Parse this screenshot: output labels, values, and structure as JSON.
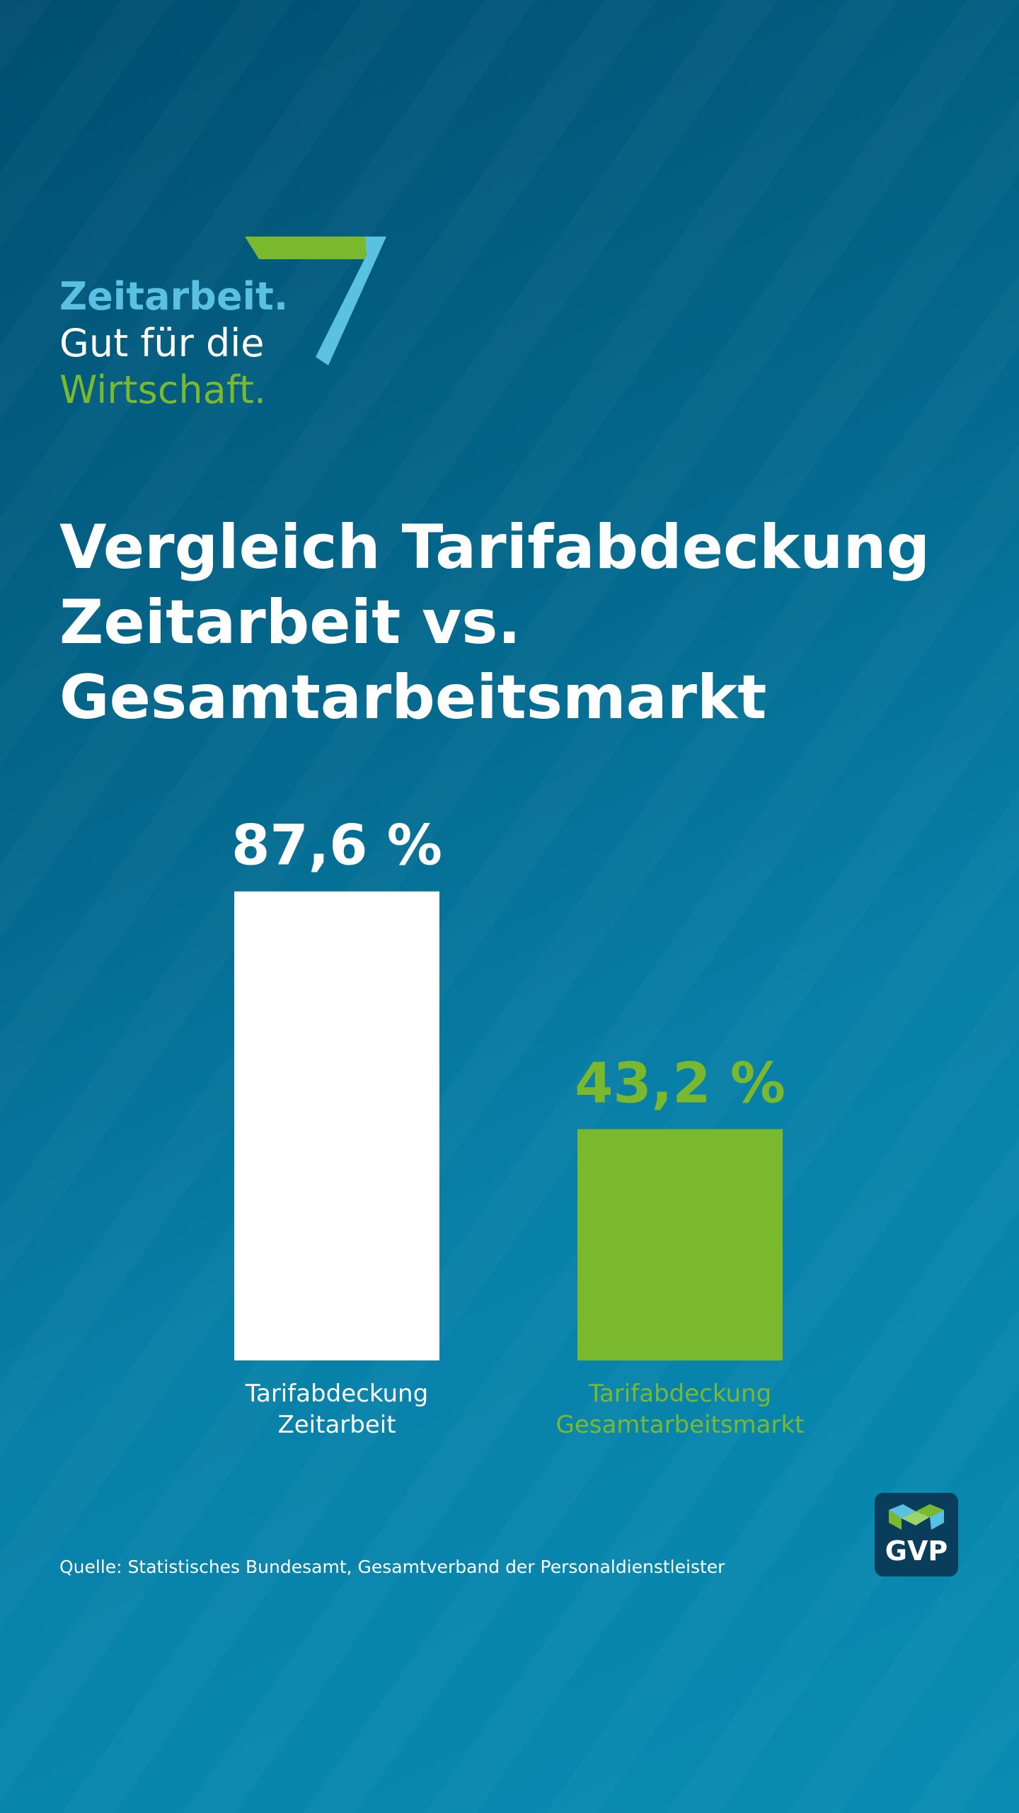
{
  "logo": {
    "line1": "Zeitarbeit.",
    "line2": "Gut für die",
    "line3": "Wirtschaft."
  },
  "title": {
    "line1": "Vergleich Tarifabdeckung",
    "line2": "Zeitarbeit vs.",
    "line3": "Gesamtarbeitsmarkt"
  },
  "chart_data": {
    "type": "bar",
    "categories": [
      [
        "Tarifabdeckung",
        "Zeitarbeit"
      ],
      [
        "Tarifabdeckung",
        "Gesamtarbeitsmarkt"
      ]
    ],
    "values": [
      87.6,
      43.2
    ],
    "value_labels": [
      "87,6 %",
      "43,2 %"
    ],
    "colors": [
      "#ffffff",
      "#7ab92e"
    ],
    "ylim": [
      0,
      100
    ],
    "grid": false,
    "title": "Vergleich Tarifabdeckung Zeitarbeit vs. Gesamtarbeitsmarkt",
    "xlabel": "",
    "ylabel": ""
  },
  "source": "Quelle: Statistisches Bundesamt, Gesamtverband der Personaldienstleister",
  "brand": {
    "text": "GVP",
    "icon": "gvp-logo-icon",
    "accent_blue": "#5bc1e3",
    "accent_green": "#7ab92e"
  }
}
